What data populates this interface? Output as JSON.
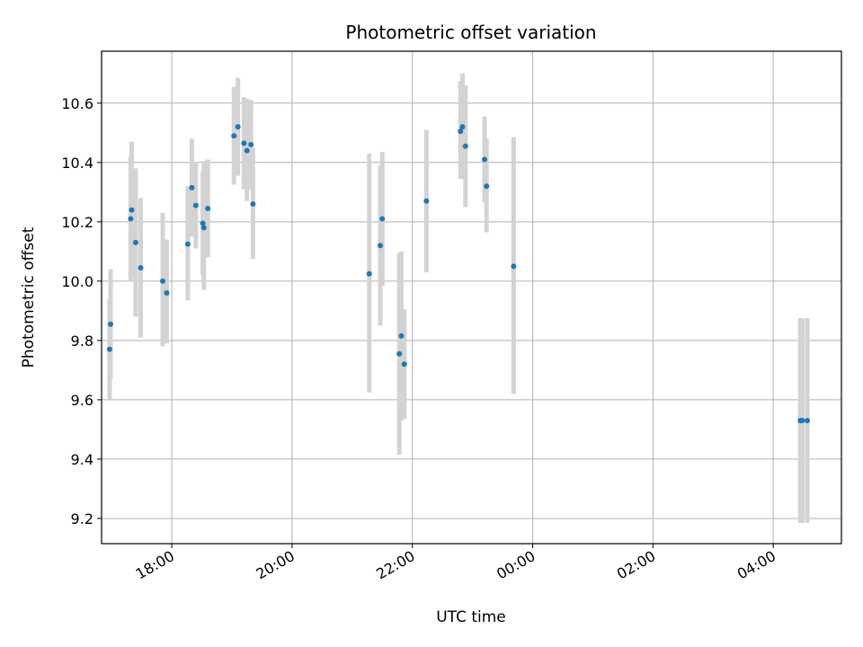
{
  "chart_data": {
    "type": "scatter",
    "title": "Photometric offset variation",
    "xlabel": "UTC time",
    "ylabel": "Photometric offset",
    "x_axis_kind": "time",
    "xlim": [
      "16:50",
      "29:08"
    ],
    "ylim": [
      9.115,
      10.775
    ],
    "grid": true,
    "x_ticks": [
      {
        "t": "18:00",
        "label": "18:00"
      },
      {
        "t": "20:00",
        "label": "20:00"
      },
      {
        "t": "22:00",
        "label": "22:00"
      },
      {
        "t": "24:00",
        "label": "00:00"
      },
      {
        "t": "26:00",
        "label": "02:00"
      },
      {
        "t": "28:00",
        "label": "04:00"
      }
    ],
    "y_ticks": [
      9.2,
      9.4,
      9.6,
      9.8,
      10.0,
      10.2,
      10.4,
      10.6
    ],
    "y_tick_labels": [
      "9.2",
      "9.4",
      "9.6",
      "9.8",
      "10.0",
      "10.2",
      "10.4",
      "10.6"
    ],
    "point_color": "#1f77b4",
    "errorbar_color": "#d3d3d3",
    "points": [
      {
        "t": "16:58",
        "y": 9.77,
        "lo": 9.6,
        "hi": 9.94
      },
      {
        "t": "16:59",
        "y": 9.855,
        "lo": 9.67,
        "hi": 10.04
      },
      {
        "t": "17:19",
        "y": 10.21,
        "lo": 10.0,
        "hi": 10.42
      },
      {
        "t": "17:20",
        "y": 10.24,
        "lo": 10.01,
        "hi": 10.47
      },
      {
        "t": "17:24",
        "y": 10.13,
        "lo": 9.88,
        "hi": 10.38
      },
      {
        "t": "17:29",
        "y": 10.045,
        "lo": 9.81,
        "hi": 10.28
      },
      {
        "t": "17:51",
        "y": 10.0,
        "lo": 9.78,
        "hi": 10.23
      },
      {
        "t": "17:55",
        "y": 9.96,
        "lo": 9.79,
        "hi": 10.14
      },
      {
        "t": "18:16",
        "y": 10.125,
        "lo": 9.935,
        "hi": 10.32
      },
      {
        "t": "18:20",
        "y": 10.315,
        "lo": 10.15,
        "hi": 10.48
      },
      {
        "t": "18:24",
        "y": 10.255,
        "lo": 10.11,
        "hi": 10.4
      },
      {
        "t": "18:31",
        "y": 10.195,
        "lo": 10.02,
        "hi": 10.37
      },
      {
        "t": "18:32",
        "y": 10.18,
        "lo": 9.97,
        "hi": 10.405
      },
      {
        "t": "18:36",
        "y": 10.245,
        "lo": 10.08,
        "hi": 10.41
      },
      {
        "t": "19:02",
        "y": 10.49,
        "lo": 10.325,
        "hi": 10.655
      },
      {
        "t": "19:06",
        "y": 10.52,
        "lo": 10.355,
        "hi": 10.685
      },
      {
        "t": "19:12",
        "y": 10.465,
        "lo": 10.31,
        "hi": 10.62
      },
      {
        "t": "19:15",
        "y": 10.44,
        "lo": 10.27,
        "hi": 10.615
      },
      {
        "t": "19:19",
        "y": 10.46,
        "lo": 10.31,
        "hi": 10.61
      },
      {
        "t": "19:21",
        "y": 10.26,
        "lo": 10.075,
        "hi": 10.45
      },
      {
        "t": "21:17",
        "y": 10.025,
        "lo": 9.625,
        "hi": 10.43
      },
      {
        "t": "21:28",
        "y": 10.12,
        "lo": 9.85,
        "hi": 10.39
      },
      {
        "t": "21:30",
        "y": 10.21,
        "lo": 9.985,
        "hi": 10.435
      },
      {
        "t": "21:47",
        "y": 9.755,
        "lo": 9.415,
        "hi": 10.095
      },
      {
        "t": "21:49",
        "y": 9.815,
        "lo": 9.53,
        "hi": 10.1
      },
      {
        "t": "21:52",
        "y": 9.72,
        "lo": 9.535,
        "hi": 9.905
      },
      {
        "t": "22:14",
        "y": 10.27,
        "lo": 10.03,
        "hi": 10.51
      },
      {
        "t": "22:48",
        "y": 10.505,
        "lo": 10.345,
        "hi": 10.675
      },
      {
        "t": "22:50",
        "y": 10.52,
        "lo": 10.345,
        "hi": 10.7
      },
      {
        "t": "22:53",
        "y": 10.455,
        "lo": 10.25,
        "hi": 10.66
      },
      {
        "t": "23:12",
        "y": 10.41,
        "lo": 10.265,
        "hi": 10.555
      },
      {
        "t": "23:14",
        "y": 10.32,
        "lo": 10.165,
        "hi": 10.48
      },
      {
        "t": "23:41",
        "y": 10.05,
        "lo": 9.62,
        "hi": 10.485
      },
      {
        "t": "28:27",
        "y": 9.53,
        "lo": 9.185,
        "hi": 9.875
      },
      {
        "t": "28:29",
        "y": 9.53,
        "lo": 9.185,
        "hi": 9.875
      },
      {
        "t": "28:34",
        "y": 9.53,
        "lo": 9.185,
        "hi": 9.875
      }
    ]
  }
}
